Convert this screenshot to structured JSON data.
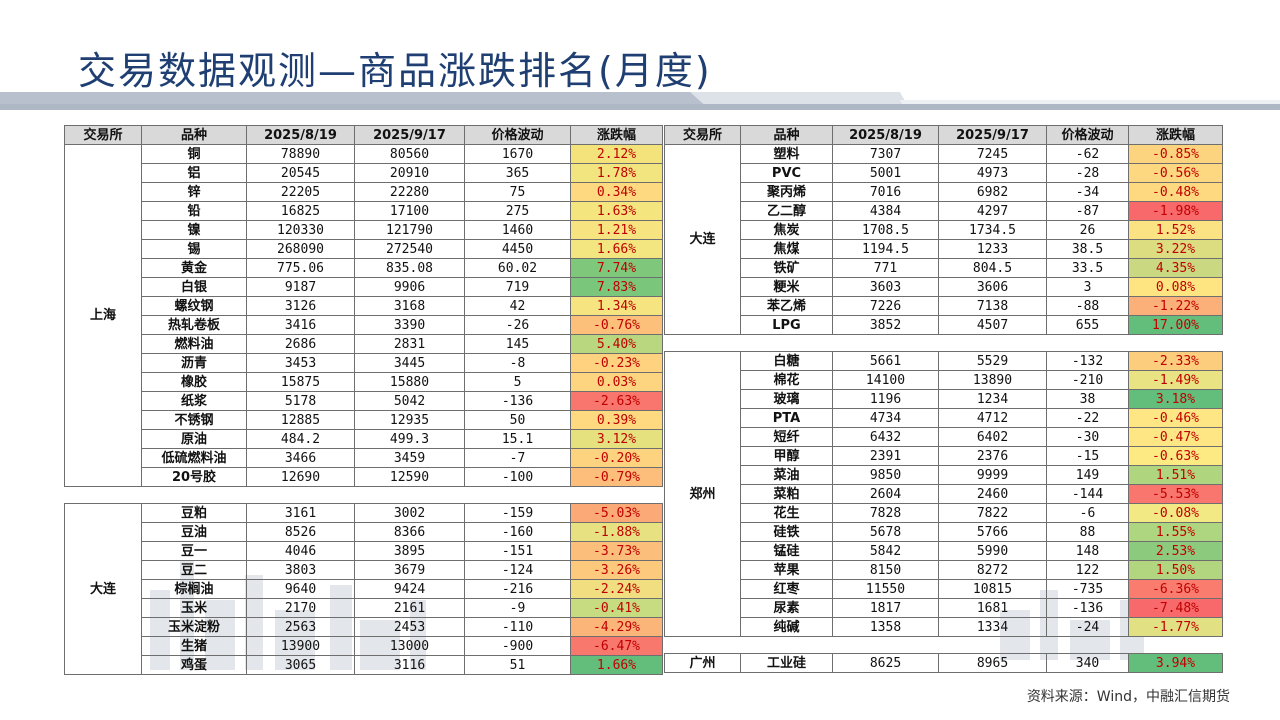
{
  "title": "交易数据观测—商品涨跌排名(月度)",
  "source": "资料来源：Wind，中融汇信期货",
  "headers": [
    "交易所",
    "品种",
    "2025/8/19",
    "2025/9/17",
    "价格波动",
    "涨跌幅"
  ],
  "left_table": {
    "groups": [
      {
        "exchange": "上海",
        "rows": [
          {
            "name": "铜",
            "v1": "78890",
            "v2": "80560",
            "diff": "1670",
            "chg": "2.12%",
            "color": "#f3e37a"
          },
          {
            "name": "铝",
            "v1": "20545",
            "v2": "20910",
            "diff": "365",
            "chg": "1.78%",
            "color": "#f2e57f"
          },
          {
            "name": "锌",
            "v1": "22205",
            "v2": "22280",
            "diff": "75",
            "chg": "0.34%",
            "color": "#fed980"
          },
          {
            "name": "铅",
            "v1": "16825",
            "v2": "17100",
            "diff": "275",
            "chg": "1.63%",
            "color": "#f4e57f"
          },
          {
            "name": "镍",
            "v1": "120330",
            "v2": "121790",
            "diff": "1460",
            "chg": "1.21%",
            "color": "#f7e480"
          },
          {
            "name": "锡",
            "v1": "268090",
            "v2": "272540",
            "diff": "4450",
            "chg": "1.66%",
            "color": "#f3e57f"
          },
          {
            "name": "黄金",
            "v1": "775.06",
            "v2": "835.08",
            "diff": "60.02",
            "chg": "7.74%",
            "color": "#7fc77b"
          },
          {
            "name": "白银",
            "v1": "9187",
            "v2": "9906",
            "diff": "719",
            "chg": "7.83%",
            "color": "#7ac67b"
          },
          {
            "name": "螺纹钢",
            "v1": "3126",
            "v2": "3168",
            "diff": "42",
            "chg": "1.34%",
            "color": "#f5e480"
          },
          {
            "name": "热轧卷板",
            "v1": "3416",
            "v2": "3390",
            "diff": "-26",
            "chg": "-0.76%",
            "color": "#fcc07a"
          },
          {
            "name": "燃料油",
            "v1": "2686",
            "v2": "2831",
            "diff": "145",
            "chg": "5.40%",
            "color": "#b8d77e"
          },
          {
            "name": "沥青",
            "v1": "3453",
            "v2": "3445",
            "diff": "-8",
            "chg": "-0.23%",
            "color": "#fed27f"
          },
          {
            "name": "橡胶",
            "v1": "15875",
            "v2": "15880",
            "diff": "5",
            "chg": "0.03%",
            "color": "#fdd580"
          },
          {
            "name": "纸浆",
            "v1": "5178",
            "v2": "5042",
            "diff": "-136",
            "chg": "-2.63%",
            "color": "#f8766d"
          },
          {
            "name": "不锈钢",
            "v1": "12885",
            "v2": "12935",
            "diff": "50",
            "chg": "0.39%",
            "color": "#fed980"
          },
          {
            "name": "原油",
            "v1": "484.2",
            "v2": "499.3",
            "diff": "15.1",
            "chg": "3.12%",
            "color": "#e6e17f"
          },
          {
            "name": "低硫燃料油",
            "v1": "3466",
            "v2": "3459",
            "diff": "-7",
            "chg": "-0.20%",
            "color": "#fed37f"
          },
          {
            "name": "20号胶",
            "v1": "12690",
            "v2": "12590",
            "diff": "-100",
            "chg": "-0.79%",
            "color": "#fcbe7a"
          }
        ]
      },
      {
        "exchange": "大连",
        "rows": [
          {
            "name": "豆粕",
            "v1": "3161",
            "v2": "3002",
            "diff": "-159",
            "chg": "-5.03%",
            "color": "#fbaa77"
          },
          {
            "name": "豆油",
            "v1": "8526",
            "v2": "8366",
            "diff": "-160",
            "chg": "-1.88%",
            "color": "#e8e182"
          },
          {
            "name": "豆一",
            "v1": "4046",
            "v2": "3895",
            "diff": "-151",
            "chg": "-3.73%",
            "color": "#fcbf7b"
          },
          {
            "name": "豆二",
            "v1": "3803",
            "v2": "3679",
            "diff": "-124",
            "chg": "-3.26%",
            "color": "#fdc97d"
          },
          {
            "name": "棕榈油",
            "v1": "9640",
            "v2": "9424",
            "diff": "-216",
            "chg": "-2.24%",
            "color": "#f0de81"
          },
          {
            "name": "玉米",
            "v1": "2170",
            "v2": "2161",
            "diff": "-9",
            "chg": "-0.41%",
            "color": "#c7dc80"
          },
          {
            "name": "玉米淀粉",
            "v1": "2563",
            "v2": "2453",
            "diff": "-110",
            "chg": "-4.29%",
            "color": "#fcb579"
          },
          {
            "name": "生猪",
            "v1": "13900",
            "v2": "13000",
            "diff": "-900",
            "chg": "-6.47%",
            "color": "#f8786e"
          },
          {
            "name": "鸡蛋",
            "v1": "3065",
            "v2": "3116",
            "diff": "51",
            "chg": "1.66%",
            "color": "#63be7b"
          }
        ]
      }
    ]
  },
  "right_table": {
    "groups": [
      {
        "exchange": "大连",
        "rows": [
          {
            "name": "塑料",
            "v1": "7307",
            "v2": "7245",
            "diff": "-62",
            "chg": "-0.85%",
            "color": "#fcd47f"
          },
          {
            "name": "PVC",
            "v1": "5001",
            "v2": "4973",
            "diff": "-28",
            "chg": "-0.56%",
            "color": "#fed880"
          },
          {
            "name": "聚丙烯",
            "v1": "7016",
            "v2": "6982",
            "diff": "-34",
            "chg": "-0.48%",
            "color": "#fed980"
          },
          {
            "name": "乙二醇",
            "v1": "4384",
            "v2": "4297",
            "diff": "-87",
            "chg": "-1.98%",
            "color": "#f8696b"
          },
          {
            "name": "焦炭",
            "v1": "1708.5",
            "v2": "1734.5",
            "diff": "26",
            "chg": "1.52%",
            "color": "#fbe283"
          },
          {
            "name": "焦煤",
            "v1": "1194.5",
            "v2": "1233",
            "diff": "38.5",
            "chg": "3.22%",
            "color": "#dcdc81"
          },
          {
            "name": "铁矿",
            "v1": "771",
            "v2": "804.5",
            "diff": "33.5",
            "chg": "4.35%",
            "color": "#c9d881"
          },
          {
            "name": "粳米",
            "v1": "3603",
            "v2": "3606",
            "diff": "3",
            "chg": "0.08%",
            "color": "#fee582"
          },
          {
            "name": "苯乙烯",
            "v1": "7226",
            "v2": "7138",
            "diff": "-88",
            "chg": "-1.22%",
            "color": "#fcb079"
          },
          {
            "name": "LPG",
            "v1": "3852",
            "v2": "4507",
            "diff": "655",
            "chg": "17.00%",
            "color": "#63be7b"
          }
        ]
      },
      {
        "exchange": "郑州",
        "rows": [
          {
            "name": "白糖",
            "v1": "5661",
            "v2": "5529",
            "diff": "-132",
            "chg": "-2.33%",
            "color": "#fdcd7e"
          },
          {
            "name": "棉花",
            "v1": "14100",
            "v2": "13890",
            "diff": "-210",
            "chg": "-1.49%",
            "color": "#e9e383"
          },
          {
            "name": "玻璃",
            "v1": "1196",
            "v2": "1234",
            "diff": "38",
            "chg": "3.18%",
            "color": "#63be7b"
          },
          {
            "name": "PTA",
            "v1": "4734",
            "v2": "4712",
            "diff": "-22",
            "chg": "-0.46%",
            "color": "#fde683"
          },
          {
            "name": "短纤",
            "v1": "6432",
            "v2": "6402",
            "diff": "-30",
            "chg": "-0.47%",
            "color": "#fde683"
          },
          {
            "name": "甲醇",
            "v1": "2391",
            "v2": "2376",
            "diff": "-15",
            "chg": "-0.63%",
            "color": "#feea83"
          },
          {
            "name": "菜油",
            "v1": "9850",
            "v2": "9999",
            "diff": "149",
            "chg": "1.51%",
            "color": "#b0d57f"
          },
          {
            "name": "菜粕",
            "v1": "2604",
            "v2": "2460",
            "diff": "-144",
            "chg": "-5.53%",
            "color": "#f8766d"
          },
          {
            "name": "花生",
            "v1": "7828",
            "v2": "7822",
            "diff": "-6",
            "chg": "-0.08%",
            "color": "#f2e884"
          },
          {
            "name": "硅铁",
            "v1": "5678",
            "v2": "5766",
            "diff": "88",
            "chg": "1.55%",
            "color": "#aed57f"
          },
          {
            "name": "锰硅",
            "v1": "5842",
            "v2": "5990",
            "diff": "148",
            "chg": "2.53%",
            "color": "#8ccb7e"
          },
          {
            "name": "苹果",
            "v1": "8150",
            "v2": "8272",
            "diff": "122",
            "chg": "1.50%",
            "color": "#b2d680"
          },
          {
            "name": "红枣",
            "v1": "11550",
            "v2": "10815",
            "diff": "-735",
            "chg": "-6.36%",
            "color": "#f97c6f"
          },
          {
            "name": "尿素",
            "v1": "1817",
            "v2": "1681",
            "diff": "-136",
            "chg": "-7.48%",
            "color": "#f8696b"
          },
          {
            "name": "纯碱",
            "v1": "1358",
            "v2": "1334",
            "diff": "-24",
            "chg": "-1.77%",
            "color": "#e1e183"
          }
        ]
      },
      {
        "exchange": "广州",
        "rows": [
          {
            "name": "工业硅",
            "v1": "8625",
            "v2": "8965",
            "diff": "340",
            "chg": "3.94%",
            "color": "#63be7b"
          }
        ]
      }
    ]
  }
}
